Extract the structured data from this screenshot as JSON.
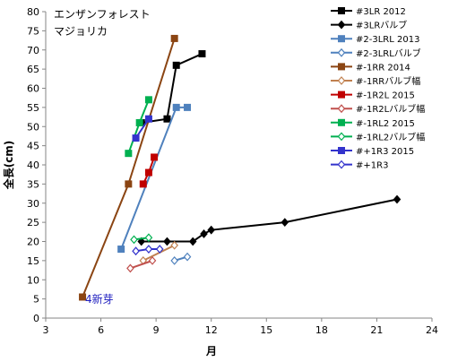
{
  "chart_data": {
    "type": "line",
    "annotations": [
      "エンザンフォレスト",
      "マジョリカ",
      "4新芽"
    ],
    "xlabel": "月",
    "ylabel": "全長(cm)",
    "xlim": [
      3,
      24
    ],
    "ylim": [
      0,
      80
    ],
    "xticks": [
      "3",
      "6",
      "9",
      "12",
      "15",
      "18",
      "21",
      "24"
    ],
    "yticks": [
      "0",
      "5",
      "10",
      "15",
      "20",
      "25",
      "30",
      "35",
      "40",
      "45",
      "50",
      "55",
      "60",
      "65",
      "70",
      "75",
      "80"
    ],
    "grid": false,
    "legend_position": "right",
    "series": [
      {
        "name": "#3LR 2012",
        "color": "#000000",
        "marker": "square",
        "x": [
          8.2,
          9.6,
          10.1,
          11.5
        ],
        "y": [
          51,
          52,
          66,
          69
        ]
      },
      {
        "name": "#3LRバルブ",
        "color": "#000000",
        "marker": "diamond",
        "x": [
          8.2,
          9.6,
          11.0,
          11.6,
          12.0,
          16.0,
          22.1
        ],
        "y": [
          20,
          20,
          20,
          22,
          23,
          25,
          31
        ]
      },
      {
        "name": "#2-3LRL 2013",
        "color": "#4f81bd",
        "marker": "square",
        "x": [
          7.1,
          10.1,
          10.7
        ],
        "y": [
          18,
          55,
          55
        ]
      },
      {
        "name": "#2-3LRLバルブ",
        "color": "#4f81bd",
        "marker": "diamond-open",
        "x": [
          10.0,
          10.7
        ],
        "y": [
          15,
          16
        ]
      },
      {
        "name": "#-1RR 2014",
        "color": "#8b4513",
        "marker": "square",
        "x": [
          5.0,
          7.5,
          10.0
        ],
        "y": [
          5.5,
          35,
          73
        ]
      },
      {
        "name": "#-1RRバルブ幅",
        "color": "#c0804f",
        "marker": "diamond-open",
        "x": [
          8.3,
          10.0
        ],
        "y": [
          15,
          19
        ]
      },
      {
        "name": "#-1R2L 2015",
        "color": "#c00000",
        "marker": "square",
        "x": [
          8.3,
          8.6,
          8.9
        ],
        "y": [
          35,
          38,
          42
        ]
      },
      {
        "name": "#-1R2Lバルブ幅",
        "color": "#c0504d",
        "marker": "diamond-open",
        "x": [
          7.6,
          8.8
        ],
        "y": [
          13,
          15
        ]
      },
      {
        "name": "#-1RL2 2015",
        "color": "#00b050",
        "marker": "square",
        "x": [
          7.5,
          8.1,
          8.6
        ],
        "y": [
          43,
          51,
          57
        ]
      },
      {
        "name": "#-1RL2バルブ幅",
        "color": "#00b050",
        "marker": "diamond-open",
        "x": [
          7.8,
          8.6
        ],
        "y": [
          20.5,
          21
        ]
      },
      {
        "name": "#+1R3 2015",
        "color": "#3333cc",
        "marker": "square",
        "x": [
          7.9,
          8.6
        ],
        "y": [
          47,
          52
        ]
      },
      {
        "name": "#+1R3",
        "color": "#3333cc",
        "marker": "diamond-open",
        "x": [
          7.9,
          8.6,
          9.2
        ],
        "y": [
          17.5,
          18,
          18
        ]
      }
    ]
  }
}
